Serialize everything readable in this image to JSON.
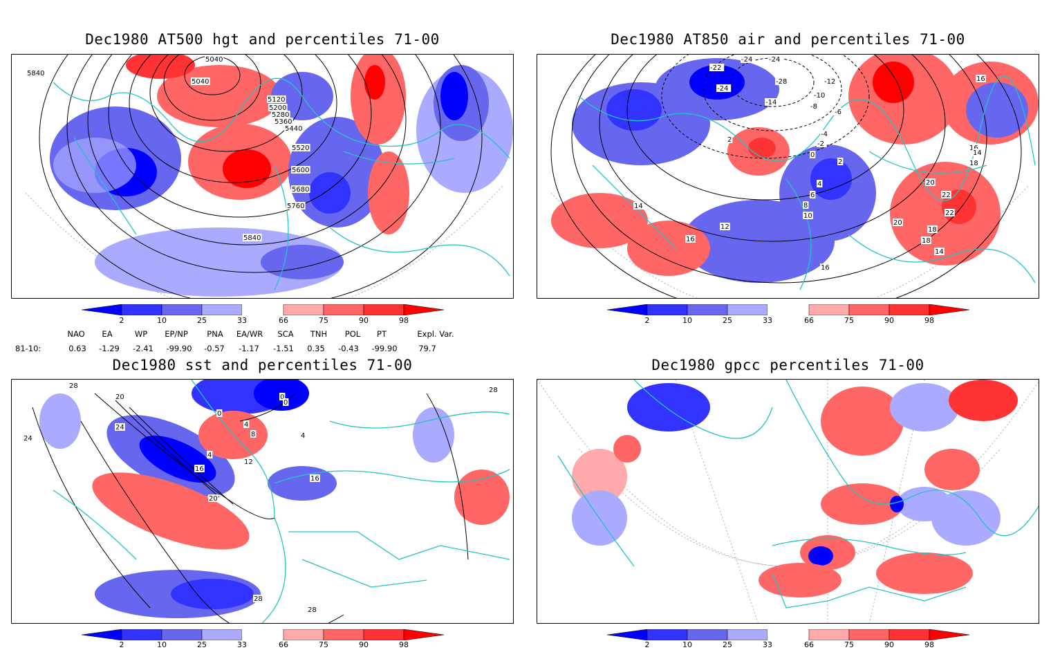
{
  "panels": [
    {
      "id": "p1",
      "title": "Dec1980 AT500 hgt and percentiles 71-00",
      "contour_labels": [
        "5040",
        "5040",
        "5120",
        "5200",
        "5280",
        "5360",
        "5440",
        "5520",
        "5600",
        "5680",
        "5760",
        "5840",
        "5840"
      ]
    },
    {
      "id": "p2",
      "title": "Dec1980 AT850 air and percentiles 71-00",
      "contour_labels": [
        "-24",
        "-24",
        "-22",
        "-24",
        "-28",
        "-12",
        "-10",
        "-8",
        "-6",
        "-14",
        "2",
        "-4",
        "-2",
        "0",
        "2",
        "4",
        "6",
        "8",
        "10",
        "12",
        "14",
        "16",
        "16",
        "18",
        "20",
        "22",
        "22",
        "20",
        "18",
        "16",
        "14",
        "16",
        "18",
        "14"
      ]
    },
    {
      "id": "p3",
      "title": "Dec1980 sst and percentiles 71-00",
      "contour_labels": [
        "28",
        "20",
        "24",
        "24",
        "0",
        "0",
        "0",
        "4",
        "4",
        "8",
        "4",
        "12",
        "16",
        "20",
        "16",
        "28",
        "28",
        "28"
      ]
    },
    {
      "id": "p4",
      "title": "Dec1980 gpcc percentiles 71-00",
      "contour_labels": []
    }
  ],
  "colorbar": {
    "labels": [
      "2",
      "10",
      "25",
      "33",
      "66",
      "75",
      "90",
      "98"
    ],
    "colors": {
      "blue_extreme": "#0000ff",
      "blue_dark": "#3333ff",
      "blue_mid": "#6666ee",
      "blue_light": "#aaaaff",
      "red_light": "#ffaaaa",
      "red_mid": "#ff6666",
      "red_dark": "#ff3333",
      "red_extreme": "#ff0000"
    }
  },
  "teleconnections": {
    "headers": [
      "NAO",
      "EA",
      "WP",
      "EP/NP",
      "PNA",
      "EA/WR",
      "SCA",
      "TNH",
      "POL",
      "PT",
      "Expl. Var."
    ],
    "row_label": "81-10:",
    "values": [
      "0.63",
      "-1.29",
      "-2.41",
      "-99.90",
      "-0.57",
      "-1.17",
      "-1.51",
      "0.35",
      "-0.43",
      "-99.90",
      "79.7"
    ]
  },
  "map_colors": {
    "coast": "#22c4c4",
    "contour": "#000000",
    "grid": "#888888"
  }
}
